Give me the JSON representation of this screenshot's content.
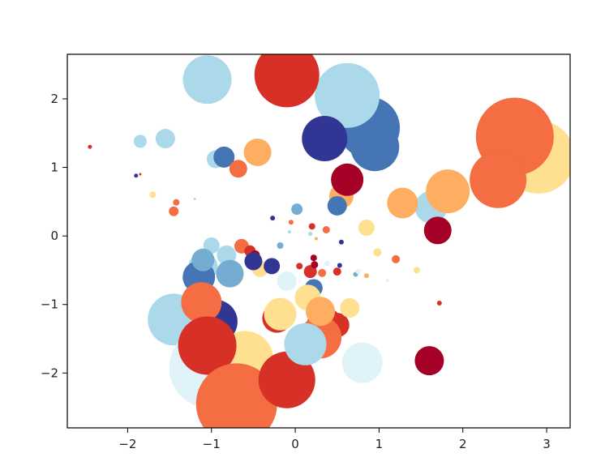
{
  "chart_data": {
    "type": "scatter",
    "title": "",
    "xlabel": "",
    "ylabel": "",
    "xlim": [
      -2.72,
      3.28
    ],
    "ylim": [
      -2.8,
      2.65
    ],
    "grid": false,
    "xticks": [
      -2,
      -1,
      0,
      1,
      2,
      3
    ],
    "yticks": [
      -2,
      -1,
      0,
      1,
      2
    ],
    "xtick_labels": [
      "−2",
      "−1",
      "0",
      "1",
      "2",
      "3"
    ],
    "ytick_labels": [
      "−2",
      "−1",
      "0",
      "1",
      "2"
    ],
    "colormap": "RdYlBu",
    "colors": [
      "#a50026",
      "#d73027",
      "#f46d43",
      "#fdae61",
      "#fee090",
      "#e0f3f8",
      "#abd9e9",
      "#74add1",
      "#4575b4",
      "#313695"
    ],
    "points": [
      {
        "x": 2.9,
        "y": 1.15,
        "s": 45,
        "c": 4
      },
      {
        "x": 2.62,
        "y": 1.45,
        "s": 48,
        "c": 2
      },
      {
        "x": 2.42,
        "y": 0.82,
        "s": 35,
        "c": 2
      },
      {
        "x": 1.62,
        "y": 0.42,
        "s": 20,
        "c": 6
      },
      {
        "x": 1.82,
        "y": 0.65,
        "s": 27,
        "c": 3
      },
      {
        "x": 1.28,
        "y": 0.48,
        "s": 19,
        "c": 3
      },
      {
        "x": 1.7,
        "y": 0.08,
        "s": 17,
        "c": 0
      },
      {
        "x": 0.88,
        "y": 1.58,
        "s": 38,
        "c": 8
      },
      {
        "x": 0.95,
        "y": 1.3,
        "s": 30,
        "c": 8
      },
      {
        "x": 0.62,
        "y": 2.05,
        "s": 40,
        "c": 6
      },
      {
        "x": 0.35,
        "y": 1.42,
        "s": 28,
        "c": 9
      },
      {
        "x": -0.1,
        "y": 2.35,
        "s": 40,
        "c": 1
      },
      {
        "x": -1.05,
        "y": 2.28,
        "s": 30,
        "c": 6
      },
      {
        "x": 0.55,
        "y": 0.58,
        "s": 15,
        "c": 3
      },
      {
        "x": 0.62,
        "y": 0.82,
        "s": 20,
        "c": 0
      },
      {
        "x": 0.5,
        "y": 0.44,
        "s": 12,
        "c": 8
      },
      {
        "x": -1.85,
        "y": 1.38,
        "s": 8,
        "c": 6
      },
      {
        "x": -1.55,
        "y": 1.42,
        "s": 12,
        "c": 6
      },
      {
        "x": -0.45,
        "y": 1.22,
        "s": 17,
        "c": 3
      },
      {
        "x": -0.95,
        "y": 1.12,
        "s": 11,
        "c": 6
      },
      {
        "x": -0.85,
        "y": 1.15,
        "s": 13,
        "c": 8
      },
      {
        "x": -0.68,
        "y": 0.98,
        "s": 11,
        "c": 2
      },
      {
        "x": -2.45,
        "y": 1.3,
        "s": 2.5,
        "c": 1
      },
      {
        "x": -1.9,
        "y": 0.88,
        "s": 2.5,
        "c": 9
      },
      {
        "x": -1.85,
        "y": 0.9,
        "s": 1.5,
        "c": 1
      },
      {
        "x": -1.7,
        "y": 0.6,
        "s": 4,
        "c": 4
      },
      {
        "x": -1.42,
        "y": 0.49,
        "s": 4,
        "c": 2
      },
      {
        "x": -1.45,
        "y": 0.36,
        "s": 6,
        "c": 2
      },
      {
        "x": -1.2,
        "y": 0.54,
        "s": 1.5,
        "c": 6
      },
      {
        "x": 0.02,
        "y": 0.39,
        "s": 7,
        "c": 7
      },
      {
        "x": -0.05,
        "y": 0.2,
        "s": 3,
        "c": 2
      },
      {
        "x": -0.27,
        "y": 0.26,
        "s": 3,
        "c": 9
      },
      {
        "x": -0.07,
        "y": 0.06,
        "s": 2,
        "c": 6
      },
      {
        "x": 0.2,
        "y": 0.14,
        "s": 4,
        "c": 1
      },
      {
        "x": 0.18,
        "y": 0.03,
        "s": 2.5,
        "c": 6
      },
      {
        "x": 0.25,
        "y": -0.04,
        "s": 2,
        "c": 3
      },
      {
        "x": 0.37,
        "y": 0.09,
        "s": 4.5,
        "c": 2
      },
      {
        "x": 0.55,
        "y": -0.09,
        "s": 3,
        "c": 9
      },
      {
        "x": 0.85,
        "y": 0.12,
        "s": 10,
        "c": 4
      },
      {
        "x": 0.98,
        "y": -0.24,
        "s": 5,
        "c": 4
      },
      {
        "x": 1.2,
        "y": -0.34,
        "s": 5,
        "c": 2
      },
      {
        "x": 1.45,
        "y": -0.5,
        "s": 4,
        "c": 4
      },
      {
        "x": 1.1,
        "y": -0.65,
        "s": 2,
        "c": 5
      },
      {
        "x": 1.72,
        "y": -0.98,
        "s": 3,
        "c": 1
      },
      {
        "x": -0.18,
        "y": -0.14,
        "s": 4,
        "c": 7
      },
      {
        "x": -0.64,
        "y": -0.15,
        "s": 9,
        "c": 2
      },
      {
        "x": -0.54,
        "y": -0.22,
        "s": 7,
        "c": 1
      },
      {
        "x": -0.48,
        "y": -0.28,
        "s": 6,
        "c": 0
      },
      {
        "x": -0.42,
        "y": -0.48,
        "s": 10,
        "c": 4
      },
      {
        "x": -0.5,
        "y": -0.37,
        "s": 11,
        "c": 9
      },
      {
        "x": -0.28,
        "y": -0.44,
        "s": 10,
        "c": 9
      },
      {
        "x": -0.1,
        "y": -0.66,
        "s": 12,
        "c": 5
      },
      {
        "x": 0.05,
        "y": -0.44,
        "s": 4,
        "c": 1
      },
      {
        "x": 0.18,
        "y": -0.52,
        "s": 8,
        "c": 1
      },
      {
        "x": 0.23,
        "y": -0.42,
        "s": 4.5,
        "c": 0
      },
      {
        "x": 0.32,
        "y": -0.54,
        "s": 5,
        "c": 2
      },
      {
        "x": 0.38,
        "y": -0.4,
        "s": 3.5,
        "c": 5
      },
      {
        "x": 0.22,
        "y": -0.32,
        "s": 4,
        "c": 0
      },
      {
        "x": 0.5,
        "y": -0.52,
        "s": 5,
        "c": 1
      },
      {
        "x": 0.53,
        "y": -0.43,
        "s": 3,
        "c": 9
      },
      {
        "x": 0.72,
        "y": -0.56,
        "s": 3,
        "c": 7
      },
      {
        "x": 0.75,
        "y": -0.52,
        "s": 3,
        "c": 5
      },
      {
        "x": 0.85,
        "y": -0.58,
        "s": 3,
        "c": 3
      },
      {
        "x": 0.22,
        "y": -0.76,
        "s": 11,
        "c": 8
      },
      {
        "x": -1.0,
        "y": -0.14,
        "s": 10,
        "c": 6
      },
      {
        "x": -1.1,
        "y": -0.45,
        "s": 18,
        "c": 6
      },
      {
        "x": -0.82,
        "y": -0.28,
        "s": 12,
        "c": 6
      },
      {
        "x": -1.15,
        "y": -0.6,
        "s": 20,
        "c": 8
      },
      {
        "x": -1.1,
        "y": -0.35,
        "s": 14,
        "c": 7
      },
      {
        "x": -0.78,
        "y": -0.55,
        "s": 17,
        "c": 7
      },
      {
        "x": -1.45,
        "y": -1.22,
        "s": 32,
        "c": 6
      },
      {
        "x": -0.95,
        "y": -1.25,
        "s": 27,
        "c": 9
      },
      {
        "x": -1.12,
        "y": -0.97,
        "s": 25,
        "c": 2
      },
      {
        "x": -1.02,
        "y": -1.92,
        "s": 50,
        "c": 5
      },
      {
        "x": -0.6,
        "y": -1.8,
        "s": 35,
        "c": 4
      },
      {
        "x": -0.65,
        "y": -2.05,
        "s": 30,
        "c": 4
      },
      {
        "x": -1.05,
        "y": -1.6,
        "s": 36,
        "c": 1
      },
      {
        "x": -0.7,
        "y": -2.45,
        "s": 50,
        "c": 2
      },
      {
        "x": -0.1,
        "y": -2.1,
        "s": 35,
        "c": 1
      },
      {
        "x": -0.22,
        "y": -1.2,
        "s": 18,
        "c": 1
      },
      {
        "x": 0.35,
        "y": -1.3,
        "s": 22,
        "c": 1
      },
      {
        "x": 0.5,
        "y": -1.3,
        "s": 15,
        "c": 1
      },
      {
        "x": 0.3,
        "y": -1.48,
        "s": 26,
        "c": 2
      },
      {
        "x": -0.18,
        "y": -1.14,
        "s": 20,
        "c": 4
      },
      {
        "x": 0.15,
        "y": -0.9,
        "s": 16,
        "c": 4
      },
      {
        "x": 0.3,
        "y": -1.1,
        "s": 18,
        "c": 3
      },
      {
        "x": 0.65,
        "y": -1.05,
        "s": 12,
        "c": 4
      },
      {
        "x": 0.12,
        "y": -1.58,
        "s": 26,
        "c": 6
      },
      {
        "x": 0.8,
        "y": -1.85,
        "s": 25,
        "c": 5
      },
      {
        "x": 1.6,
        "y": -1.82,
        "s": 18,
        "c": 0
      }
    ]
  }
}
